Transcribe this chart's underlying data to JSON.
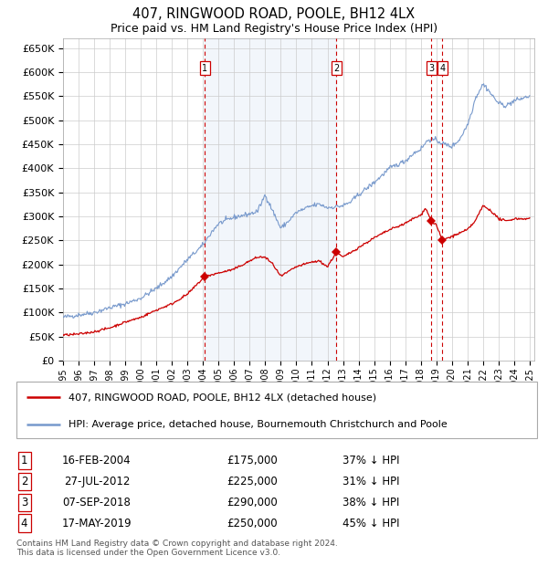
{
  "title": "407, RINGWOOD ROAD, POOLE, BH12 4LX",
  "subtitle": "Price paid vs. HM Land Registry's House Price Index (HPI)",
  "title_fontsize": 10.5,
  "subtitle_fontsize": 9,
  "ylim": [
    0,
    670000
  ],
  "yticks": [
    0,
    50000,
    100000,
    150000,
    200000,
    250000,
    300000,
    350000,
    400000,
    450000,
    500000,
    550000,
    600000,
    650000
  ],
  "background_color": "#ffffff",
  "shade_color": "#ccdcf0",
  "grid_color": "#cccccc",
  "hpi_color": "#7799cc",
  "price_color": "#cc0000",
  "vline_color": "#cc0000",
  "hpi_anchors": [
    [
      1995.0,
      90000
    ],
    [
      1996.0,
      95000
    ],
    [
      1997.0,
      100000
    ],
    [
      1998.0,
      110000
    ],
    [
      1999.0,
      118000
    ],
    [
      2000.0,
      130000
    ],
    [
      2001.0,
      150000
    ],
    [
      2002.0,
      175000
    ],
    [
      2003.0,
      210000
    ],
    [
      2004.0,
      240000
    ],
    [
      2004.5,
      265000
    ],
    [
      2005.0,
      285000
    ],
    [
      2006.0,
      298000
    ],
    [
      2007.0,
      305000
    ],
    [
      2007.5,
      310000
    ],
    [
      2008.0,
      345000
    ],
    [
      2008.5,
      310000
    ],
    [
      2009.0,
      275000
    ],
    [
      2009.5,
      290000
    ],
    [
      2010.0,
      308000
    ],
    [
      2010.5,
      315000
    ],
    [
      2011.0,
      322000
    ],
    [
      2011.5,
      325000
    ],
    [
      2012.0,
      318000
    ],
    [
      2012.5,
      320000
    ],
    [
      2013.0,
      322000
    ],
    [
      2013.5,
      330000
    ],
    [
      2014.0,
      345000
    ],
    [
      2015.0,
      370000
    ],
    [
      2016.0,
      400000
    ],
    [
      2017.0,
      415000
    ],
    [
      2017.5,
      430000
    ],
    [
      2018.0,
      440000
    ],
    [
      2018.5,
      460000
    ],
    [
      2019.0,
      458000
    ],
    [
      2019.5,
      450000
    ],
    [
      2020.0,
      445000
    ],
    [
      2020.5,
      460000
    ],
    [
      2021.0,
      490000
    ],
    [
      2021.3,
      520000
    ],
    [
      2021.5,
      545000
    ],
    [
      2022.0,
      575000
    ],
    [
      2022.3,
      565000
    ],
    [
      2022.5,
      555000
    ],
    [
      2023.0,
      535000
    ],
    [
      2023.5,
      530000
    ],
    [
      2024.0,
      540000
    ],
    [
      2024.5,
      545000
    ],
    [
      2025.0,
      550000
    ]
  ],
  "price_anchors": [
    [
      1995.0,
      53000
    ],
    [
      1996.0,
      55000
    ],
    [
      1997.0,
      60000
    ],
    [
      1998.0,
      68000
    ],
    [
      1999.0,
      80000
    ],
    [
      2000.0,
      90000
    ],
    [
      2001.0,
      105000
    ],
    [
      2002.0,
      118000
    ],
    [
      2003.0,
      138000
    ],
    [
      2004.12,
      175000
    ],
    [
      2005.0,
      182000
    ],
    [
      2006.0,
      190000
    ],
    [
      2007.0,
      207000
    ],
    [
      2007.5,
      215000
    ],
    [
      2008.0,
      215000
    ],
    [
      2008.5,
      200000
    ],
    [
      2009.0,
      175000
    ],
    [
      2009.5,
      185000
    ],
    [
      2010.0,
      195000
    ],
    [
      2011.0,
      205000
    ],
    [
      2011.5,
      207000
    ],
    [
      2012.0,
      195000
    ],
    [
      2012.57,
      225000
    ],
    [
      2013.0,
      215000
    ],
    [
      2013.5,
      225000
    ],
    [
      2014.0,
      235000
    ],
    [
      2015.0,
      255000
    ],
    [
      2016.0,
      272000
    ],
    [
      2017.0,
      285000
    ],
    [
      2017.5,
      295000
    ],
    [
      2018.0,
      302000
    ],
    [
      2018.3,
      318000
    ],
    [
      2018.68,
      290000
    ],
    [
      2019.0,
      282000
    ],
    [
      2019.38,
      250000
    ],
    [
      2019.5,
      252000
    ],
    [
      2020.0,
      258000
    ],
    [
      2020.5,
      265000
    ],
    [
      2021.0,
      272000
    ],
    [
      2021.5,
      290000
    ],
    [
      2022.0,
      322000
    ],
    [
      2022.5,
      312000
    ],
    [
      2023.0,
      295000
    ],
    [
      2023.5,
      290000
    ],
    [
      2024.0,
      295000
    ],
    [
      2024.5,
      295000
    ],
    [
      2025.0,
      295000
    ]
  ],
  "transactions": [
    {
      "date_num": 2004.12,
      "price": 175000,
      "label": "1"
    },
    {
      "date_num": 2012.57,
      "price": 225000,
      "label": "2"
    },
    {
      "date_num": 2018.68,
      "price": 290000,
      "label": "3"
    },
    {
      "date_num": 2019.38,
      "price": 250000,
      "label": "4"
    }
  ],
  "legend_entries": [
    "407, RINGWOOD ROAD, POOLE, BH12 4LX (detached house)",
    "HPI: Average price, detached house, Bournemouth Christchurch and Poole"
  ],
  "table_rows": [
    {
      "num": "1",
      "date": "16-FEB-2004",
      "price": "£175,000",
      "pct": "37% ↓ HPI"
    },
    {
      "num": "2",
      "date": "27-JUL-2012",
      "price": "£225,000",
      "pct": "31% ↓ HPI"
    },
    {
      "num": "3",
      "date": "07-SEP-2018",
      "price": "£290,000",
      "pct": "38% ↓ HPI"
    },
    {
      "num": "4",
      "date": "17-MAY-2019",
      "price": "£250,000",
      "pct": "45% ↓ HPI"
    }
  ],
  "footer": "Contains HM Land Registry data © Crown copyright and database right 2024.\nThis data is licensed under the Open Government Licence v3.0.",
  "shade_start": 2004.12,
  "shade_end": 2012.57,
  "xmin": 1995.0,
  "xmax": 2025.3
}
